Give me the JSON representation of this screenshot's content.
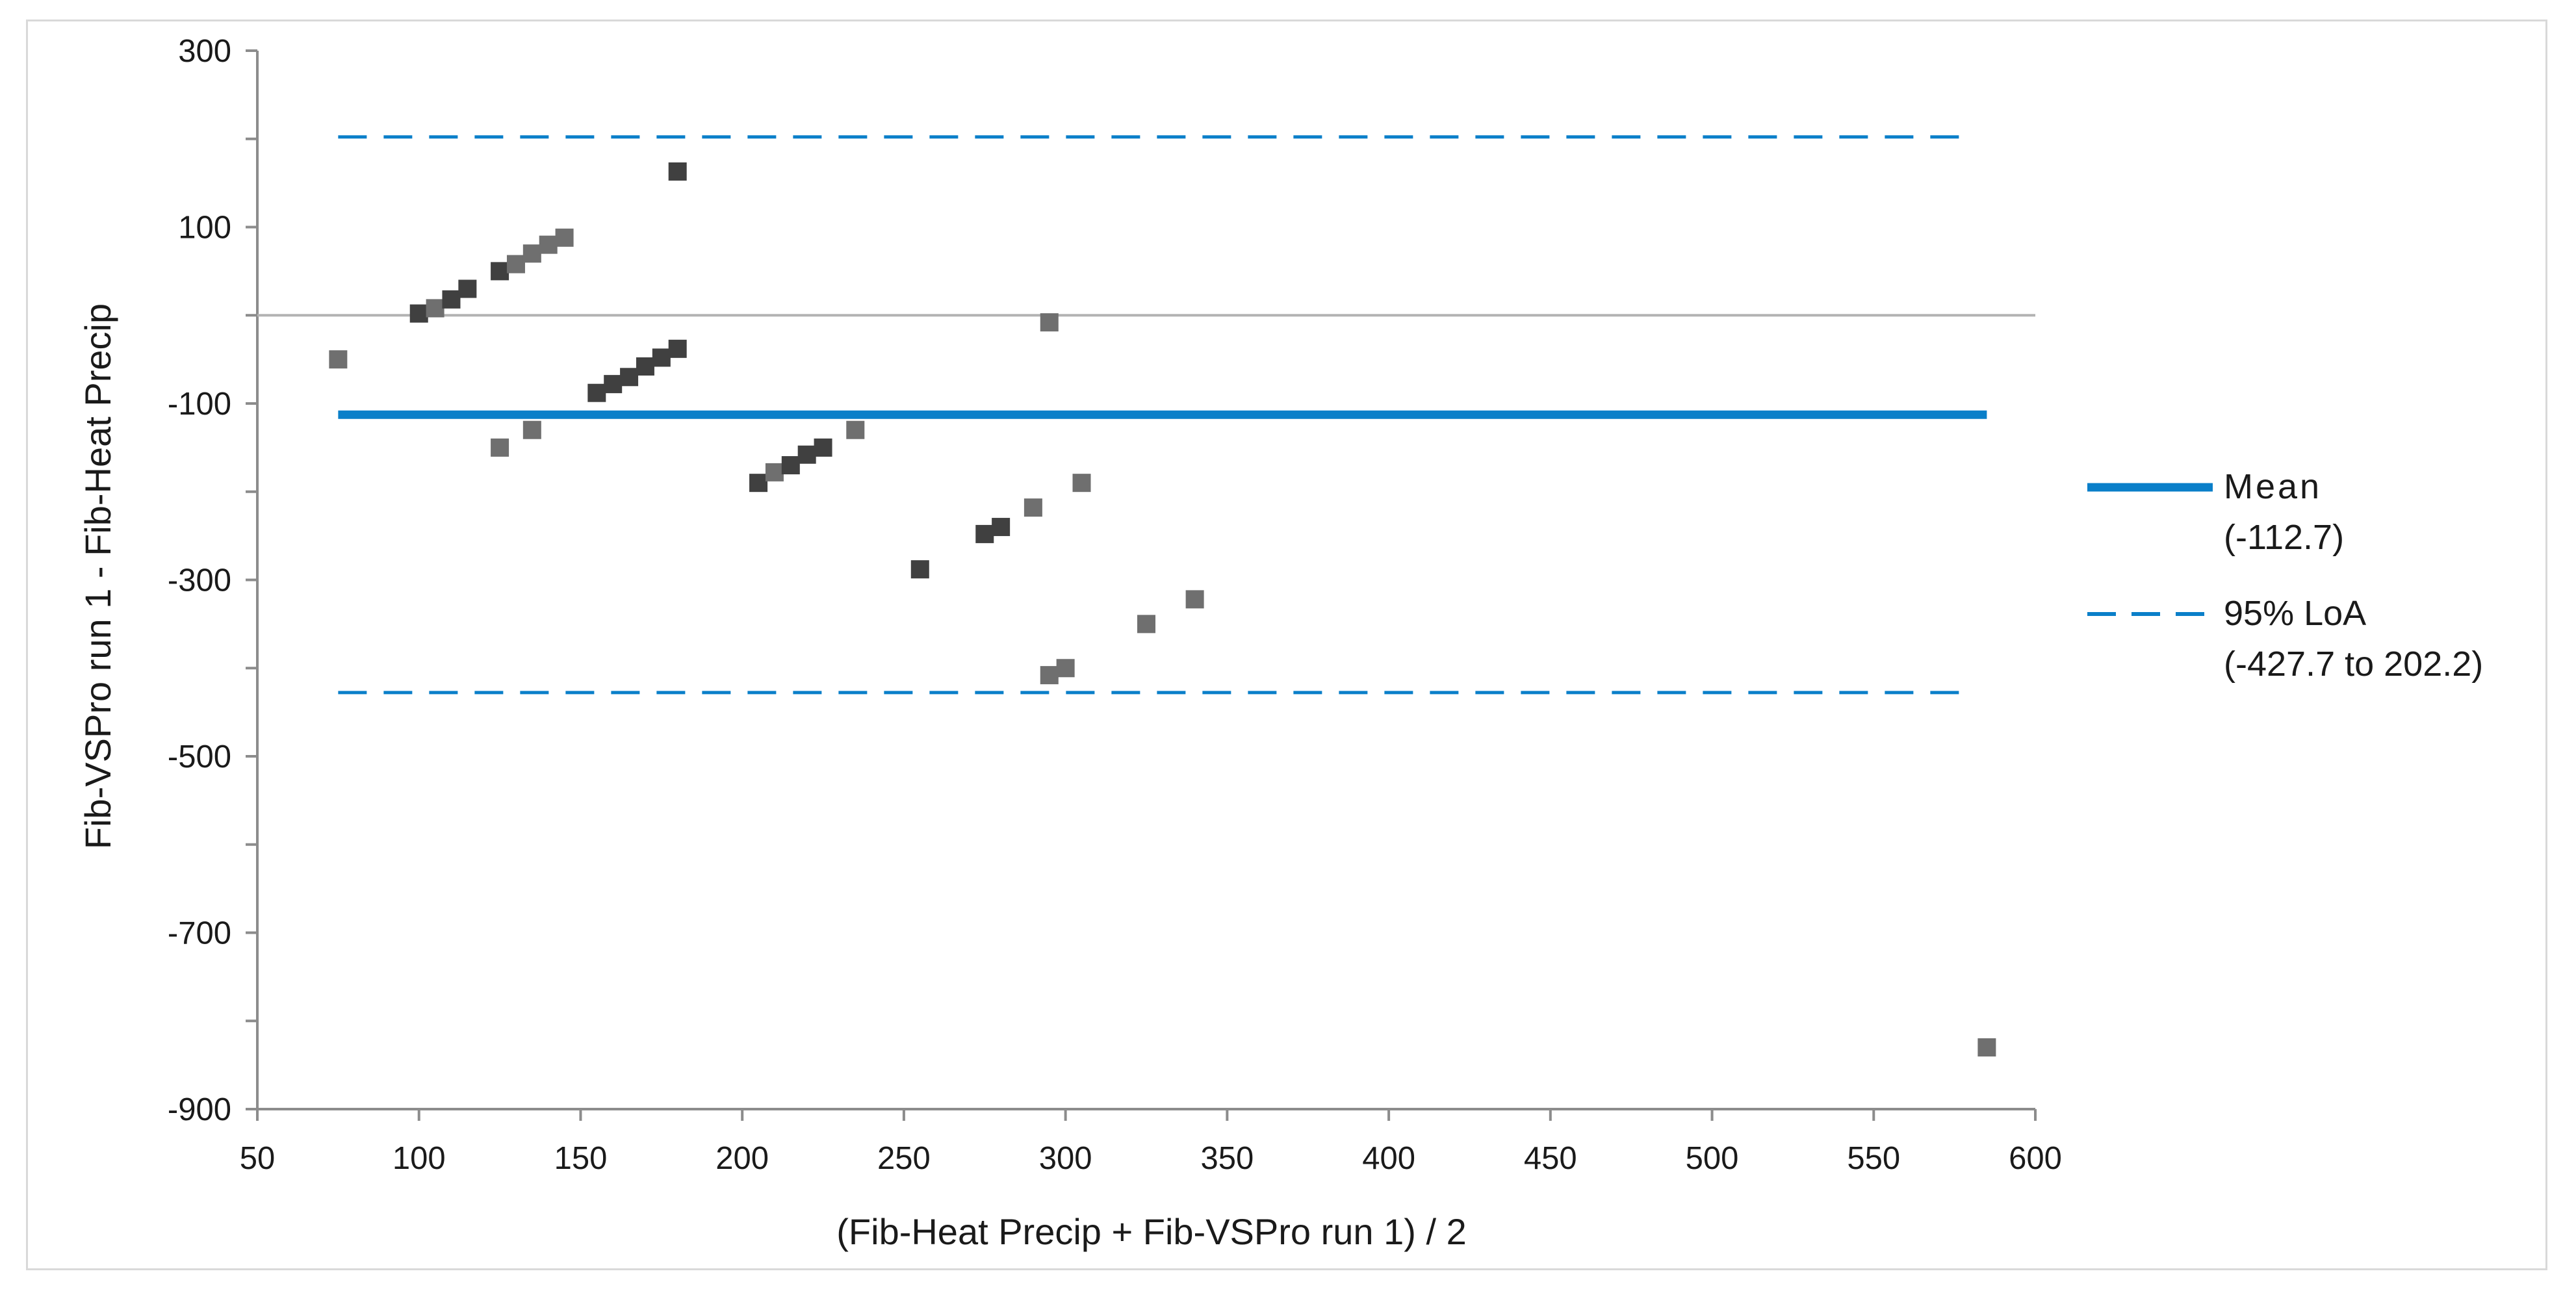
{
  "chart_data": {
    "type": "scatter",
    "xlabel": "(Fib-Heat Precip + Fib-VSPro run 1) / 2",
    "ylabel": "Fib-VSPro run 1 - Fib-Heat Precip",
    "xlim": [
      50,
      600
    ],
    "ylim": [
      -900,
      300
    ],
    "x_ticks": [
      50,
      100,
      150,
      200,
      250,
      300,
      350,
      400,
      450,
      500,
      550,
      600
    ],
    "y_tick_labels": [
      300,
      100,
      -100,
      -300,
      -500,
      -700,
      -900
    ],
    "y_minor_ticks": [
      200,
      0,
      -200,
      -400,
      -600,
      -800
    ],
    "grid": false,
    "zero_line": 0,
    "points": [
      {
        "x": 75,
        "y": -50,
        "shade": "light"
      },
      {
        "x": 100,
        "y": 2,
        "shade": "dark"
      },
      {
        "x": 105,
        "y": 8,
        "shade": "light"
      },
      {
        "x": 110,
        "y": 18,
        "shade": "dark"
      },
      {
        "x": 115,
        "y": 30,
        "shade": "dark"
      },
      {
        "x": 125,
        "y": 50,
        "shade": "dark"
      },
      {
        "x": 130,
        "y": 58,
        "shade": "light"
      },
      {
        "x": 135,
        "y": 70,
        "shade": "light"
      },
      {
        "x": 140,
        "y": 80,
        "shade": "light"
      },
      {
        "x": 145,
        "y": 88,
        "shade": "light"
      },
      {
        "x": 125,
        "y": -150,
        "shade": "light"
      },
      {
        "x": 135,
        "y": -130,
        "shade": "light"
      },
      {
        "x": 155,
        "y": -88,
        "shade": "dark"
      },
      {
        "x": 160,
        "y": -78,
        "shade": "dark"
      },
      {
        "x": 165,
        "y": -70,
        "shade": "dark"
      },
      {
        "x": 170,
        "y": -58,
        "shade": "dark"
      },
      {
        "x": 175,
        "y": -48,
        "shade": "dark"
      },
      {
        "x": 180,
        "y": -38,
        "shade": "dark"
      },
      {
        "x": 180,
        "y": 163,
        "shade": "dark"
      },
      {
        "x": 205,
        "y": -190,
        "shade": "dark"
      },
      {
        "x": 210,
        "y": -178,
        "shade": "light"
      },
      {
        "x": 215,
        "y": -170,
        "shade": "dark"
      },
      {
        "x": 220,
        "y": -158,
        "shade": "dark"
      },
      {
        "x": 225,
        "y": -150,
        "shade": "dark"
      },
      {
        "x": 235,
        "y": -130,
        "shade": "light"
      },
      {
        "x": 255,
        "y": -288,
        "shade": "dark"
      },
      {
        "x": 275,
        "y": -248,
        "shade": "dark"
      },
      {
        "x": 280,
        "y": -240,
        "shade": "dark"
      },
      {
        "x": 290,
        "y": -218,
        "shade": "light"
      },
      {
        "x": 295,
        "y": -8,
        "shade": "light"
      },
      {
        "x": 295,
        "y": -408,
        "shade": "light"
      },
      {
        "x": 300,
        "y": -400,
        "shade": "light"
      },
      {
        "x": 305,
        "y": -190,
        "shade": "light"
      },
      {
        "x": 325,
        "y": -350,
        "shade": "light"
      },
      {
        "x": 340,
        "y": -322,
        "shade": "light"
      },
      {
        "x": 585,
        "y": -830,
        "shade": "light"
      }
    ],
    "mean_line": {
      "y": -112.7,
      "x_range": [
        75,
        585
      ],
      "color": "#0a7fc9"
    },
    "loa_lines": {
      "upper": 202.2,
      "lower": -427.7,
      "x_range": [
        75,
        580
      ],
      "color": "#0a7fc9"
    },
    "legend": {
      "placement": "right",
      "mean_label": "Mean",
      "mean_value": "(-112.7)",
      "loa_label": "95% LoA",
      "loa_value": "(-427.7 to 202.2)"
    },
    "colors": {
      "dark_point": "#404040",
      "light_point": "#6f6f6f",
      "axis": "#8c8c8c",
      "zero_line": "#b3b3b3"
    }
  }
}
